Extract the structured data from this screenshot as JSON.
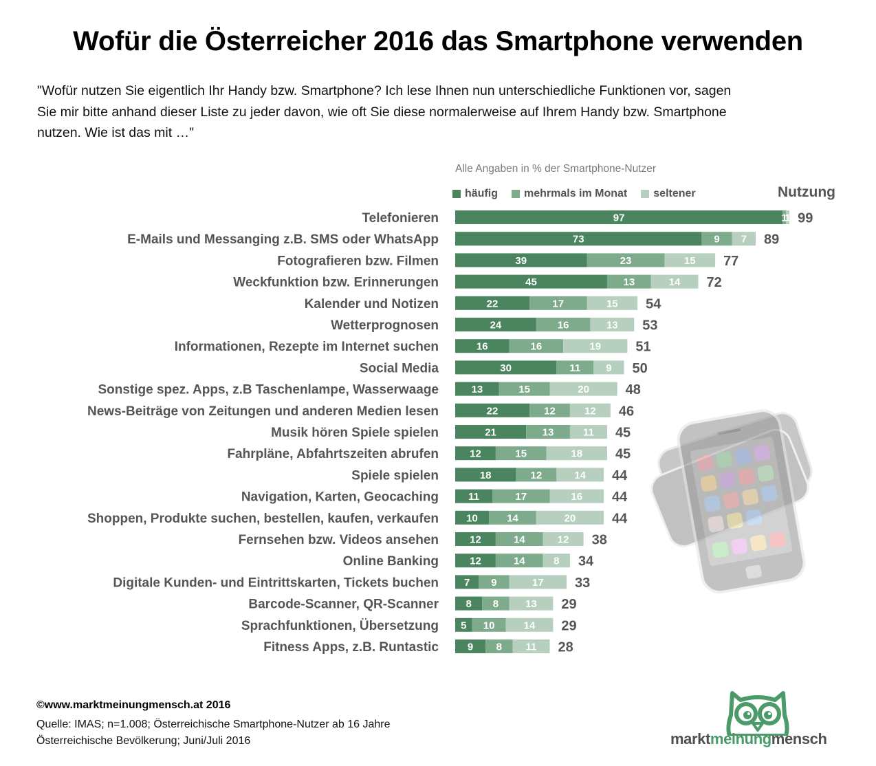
{
  "header": {
    "title": "Wofür die Österreicher 2016 das Smartphone verwenden",
    "question_lines": [
      "\"Wofür nutzen Sie eigentlich Ihr Handy bzw. Smartphone? Ich lese Ihnen nun unterschiedliche Funktionen vor, sagen",
      "Sie mir bitte anhand dieser Liste zu jeder davon, wie oft Sie diese normalerweise auf Ihrem Handy bzw. Smartphone",
      "nutzen. Wie ist das mit …\""
    ]
  },
  "colors": {
    "haeufig": "#4a8560",
    "mehrmals": "#7fab8d",
    "seltener": "#b6cfbe",
    "label_text": "#555555"
  },
  "chart_data": {
    "type": "bar",
    "orientation": "horizontal",
    "stacked": true,
    "title": "Wofür die Österreicher 2016 das Smartphone verwenden",
    "subtitle": "Alle Angaben in % der Smartphone-Nutzer",
    "total_header": "Nutzung",
    "legend_position": "top",
    "legend": [
      "häufig",
      "mehrmals im Monat",
      "seltener"
    ],
    "categories": [
      "Telefonieren",
      "E-Mails und Messanging z.B. SMS oder WhatsApp",
      "Fotografieren bzw. Filmen",
      "Weckfunktion bzw. Erinnerungen",
      "Kalender und Notizen",
      "Wetterprognosen",
      "Informationen, Rezepte im Internet suchen",
      "Social Media",
      "Sonstige spez. Apps, z.B Taschenlampe, Wasserwaage",
      "News-Beiträge von Zeitungen und anderen Medien lesen",
      "Musik hören Spiele spielen",
      "Fahrpläne, Abfahrtszeiten abrufen",
      "Spiele spielen",
      "Navigation, Karten, Geocaching",
      "Shoppen, Produkte suchen, bestellen, kaufen, verkaufen",
      "Fernsehen bzw. Videos ansehen",
      "Online Banking",
      "Digitale Kunden- und Eintrittskarten, Tickets buchen",
      "Barcode-Scanner, QR-Scanner",
      "Sprachfunktionen, Übersetzung",
      "Fitness Apps, z.B. Runtastic"
    ],
    "series": [
      {
        "name": "häufig",
        "values": [
          97,
          73,
          39,
          45,
          22,
          24,
          16,
          30,
          13,
          22,
          21,
          12,
          18,
          11,
          10,
          12,
          12,
          7,
          8,
          5,
          9
        ]
      },
      {
        "name": "mehrmals im Monat",
        "values": [
          1,
          9,
          23,
          13,
          17,
          16,
          16,
          11,
          15,
          12,
          13,
          15,
          12,
          17,
          14,
          14,
          14,
          9,
          8,
          10,
          8
        ]
      },
      {
        "name": "seltener",
        "values": [
          1,
          7,
          15,
          14,
          15,
          13,
          19,
          9,
          20,
          12,
          11,
          18,
          14,
          16,
          20,
          12,
          8,
          17,
          13,
          14,
          11
        ]
      }
    ],
    "totals": [
      99,
      89,
      77,
      72,
      54,
      53,
      51,
      50,
      48,
      46,
      45,
      45,
      44,
      44,
      44,
      38,
      34,
      33,
      29,
      29,
      28
    ],
    "xlabel": "",
    "ylabel": "",
    "xlim": [
      0,
      100
    ],
    "grid": false
  },
  "footer": {
    "copyright": "©www.marktmeinungmensch.at 2016",
    "source_lines": [
      "Quelle: IMAS; n=1.008; Österreichische Smartphone-Nutzer ab 16 Jahre",
      "Österreichische Bevölkerung; Juni/Juli 2016"
    ]
  },
  "logo": {
    "part1": "markt",
    "part2": "meinung",
    "part3": "mensch",
    "icon": "owl-icon"
  },
  "illustration": {
    "icon": "smartphones-illustration"
  }
}
